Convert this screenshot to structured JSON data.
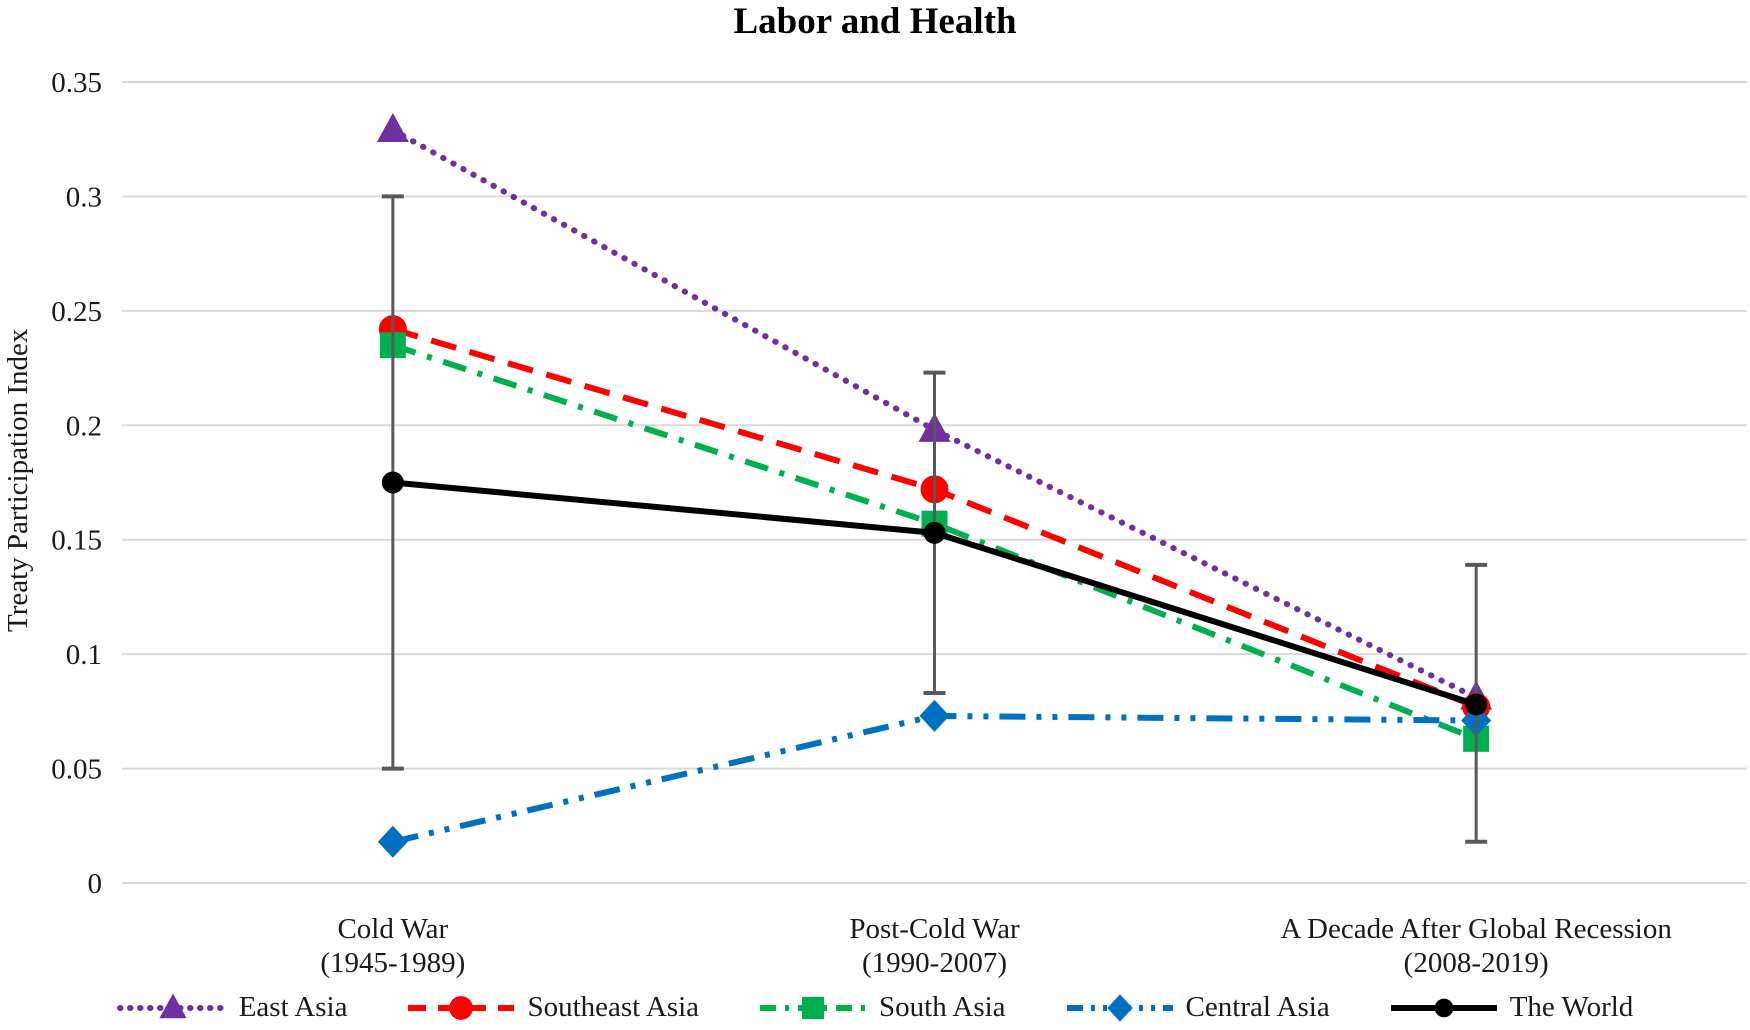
{
  "chart_data": {
    "type": "line",
    "title": "Labor and Health",
    "ylabel": "Treaty Participation Index",
    "xlabel": "",
    "ylim": [
      0,
      0.35
    ],
    "grid": "horizontal",
    "gridline_color": "#D9D9D9",
    "legend_position": "bottom",
    "ytick_labels": [
      "0",
      "0.05",
      "0.1",
      "0.15",
      "0.2",
      "0.25",
      "0.3",
      "0.35"
    ],
    "categories": [
      [
        "Cold War",
        "(1945-1989)"
      ],
      [
        "Post-Cold War",
        "(1990-2007)"
      ],
      [
        "A Decade After Global Recession",
        "(2008-2019)"
      ]
    ],
    "series": [
      {
        "name": "East Asia",
        "color": "#7030A0",
        "marker": "triangle",
        "line_style": "dotted",
        "values": [
          0.329,
          0.198,
          0.081
        ]
      },
      {
        "name": "Southeast Asia",
        "color": "#FF0000",
        "marker": "circle",
        "line_style": "dashed",
        "values": [
          0.242,
          0.172,
          0.077
        ]
      },
      {
        "name": "South Asia",
        "color": "#00B050",
        "marker": "square",
        "line_style": "dash-dot",
        "values": [
          0.235,
          0.157,
          0.063
        ]
      },
      {
        "name": "Central Asia",
        "color": "#0070C0",
        "marker": "diamond",
        "line_style": "dash-dot-dot",
        "values": [
          0.018,
          0.073,
          0.071
        ]
      },
      {
        "name": "The World",
        "color": "#000000",
        "marker": "dot",
        "line_style": "solid",
        "values": [
          0.175,
          0.153,
          0.078
        ]
      }
    ],
    "error_bars": {
      "attached_to": "The World",
      "color": "#595959",
      "low": [
        0.05,
        0.083,
        0.018
      ],
      "high": [
        0.3,
        0.223,
        0.139
      ]
    }
  }
}
